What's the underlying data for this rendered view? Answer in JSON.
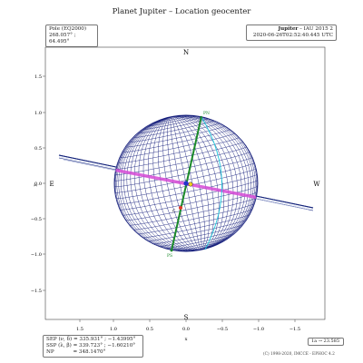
{
  "title": "Planet Jupiter – Location geocenter",
  "pole_box": {
    "line1": "Pole (EQ2000)",
    "line2": "268.057° ; 64.495°"
  },
  "ephem_box": {
    "line1_bold": "Jupiter",
    "line1_rest": " – IAU 2015 2",
    "line2": "2020-06-26T02:52:40.445 UTC"
  },
  "directions": {
    "north": "N",
    "south": "S",
    "east": "E",
    "west": "W"
  },
  "axes": {
    "xlabel": "x",
    "ylabel": "y",
    "x_ticks": [
      "1.5",
      "1.0",
      "0.5",
      "0.0",
      "−0.5",
      "−1.0",
      "−1.5"
    ],
    "y_ticks": [
      "1.5",
      "1.0",
      "0.5",
      "0.0",
      "−0.5",
      "−1.0",
      "−1.5"
    ]
  },
  "geometry": {
    "sep_label": "SEP (ν, δ)",
    "sep_value": "= 335.931° ; −1.43995°",
    "ssp_label": "SSP (λ, β)",
    "ssp_value": "= 339.723° ; −1.60210°",
    "np_label": "NP",
    "np_value": "= 348.1470°"
  },
  "pole_labels": {
    "north": "PN",
    "south": "PS",
    "center_marker": "C"
  },
  "zoom_label": "1a → 23.585′",
  "copyright": "(C) 1998-2020, IMCCE - EPHOC 4.2",
  "colors": {
    "globe_grid": "#1a237e",
    "equator": "#d64ad6",
    "central_meridian": "#1b8a2a",
    "terminator": "#1fc8dc",
    "rings": "#14237a"
  }
}
